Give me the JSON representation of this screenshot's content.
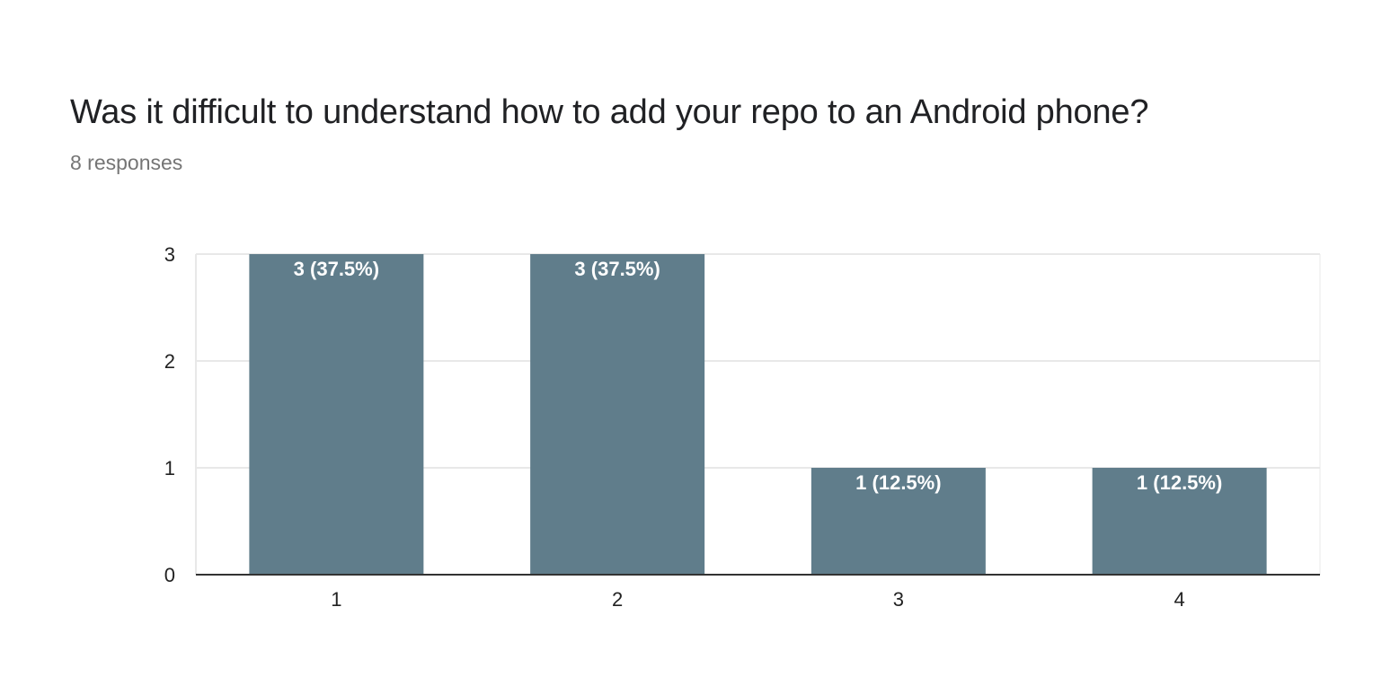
{
  "question": {
    "title": "Was it difficult to understand how to add your repo to an Android phone?",
    "response_count": "8 responses"
  },
  "chart_data": {
    "type": "bar",
    "categories": [
      "1",
      "2",
      "3",
      "4"
    ],
    "values": [
      3,
      3,
      1,
      1
    ],
    "data_labels": [
      "3 (37.5%)",
      "3 (37.5%)",
      "1 (12.5%)",
      "1 (12.5%)"
    ],
    "y_ticks": [
      0,
      1,
      2,
      3
    ],
    "ylim": [
      0,
      3
    ],
    "grid": true,
    "bar_color": "#607d8b",
    "gridline_color": "#e8e8e8",
    "axis_color": "#333333",
    "xlabel": "",
    "ylabel": ""
  }
}
